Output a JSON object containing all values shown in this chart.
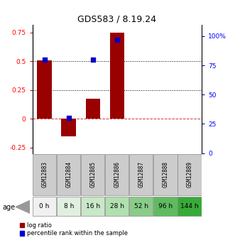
{
  "title": "GDS583 / 8.19.24",
  "samples": [
    "GSM12883",
    "GSM12884",
    "GSM12885",
    "GSM12886",
    "GSM12887",
    "GSM12888",
    "GSM12889"
  ],
  "ages": [
    "0 h",
    "8 h",
    "16 h",
    "28 h",
    "52 h",
    "96 h",
    "144 h"
  ],
  "log_ratio": [
    0.51,
    -0.155,
    0.175,
    0.75,
    0.0,
    0.0,
    0.0
  ],
  "percentile_rank": [
    0.8,
    0.3,
    0.8,
    0.97,
    0.0,
    0.0,
    0.0
  ],
  "bar_color": "#990000",
  "dot_color": "#0000cc",
  "ylim_left": [
    -0.3,
    0.82
  ],
  "ylim_right": [
    0,
    110
  ],
  "yticks_left": [
    -0.25,
    0,
    0.25,
    0.5,
    0.75
  ],
  "yticks_right": [
    0,
    25,
    50,
    75,
    100
  ],
  "ytick_labels_right": [
    "0",
    "25",
    "50",
    "75",
    "100%"
  ],
  "hline_dotted": [
    0.25,
    0.5
  ],
  "hline_dashed": 0.0,
  "age_colors": [
    "#f0f0f0",
    "#e0f0e0",
    "#c8e8c8",
    "#b0e0b0",
    "#88cc88",
    "#60bb60",
    "#38aa38"
  ],
  "sample_box_color": "#cccccc",
  "bar_width": 0.6,
  "dot_size": 22,
  "background_color": "#ffffff",
  "label_log_ratio": "log ratio",
  "label_percentile": "percentile rank within the sample",
  "age_label": "age"
}
